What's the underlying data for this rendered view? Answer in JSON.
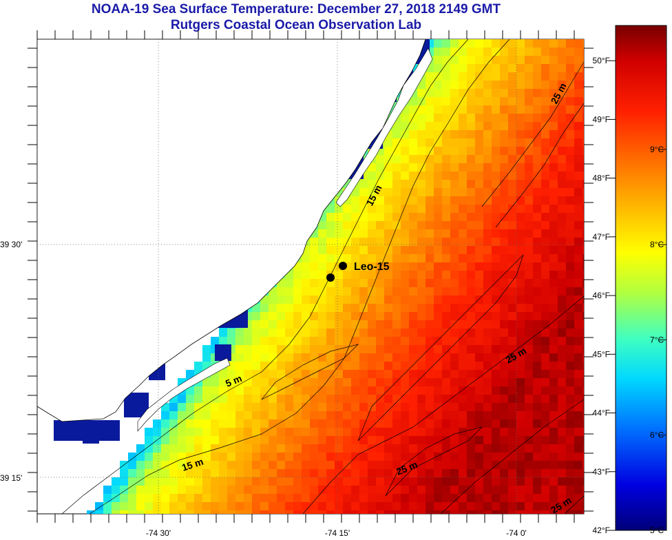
{
  "title": "NOAA-19 Sea Surface Temperature:  December 27, 2018 2149 GMT",
  "subtitle": "Rutgers Coastal Ocean Observation Lab",
  "station": {
    "name": "Leo-15"
  },
  "lat_labels": [
    "39 30'",
    "39 15'"
  ],
  "lon_labels": [
    "-74 30'",
    "-74 15'",
    "-74 0'"
  ],
  "contour_labels": [
    "15 m",
    "5 m",
    "15 m",
    "25 m",
    "25 m",
    "25 m",
    "25 m"
  ],
  "colorbar": {
    "fahrenheit": [
      "50°F",
      "49°F",
      "48°F",
      "47°F",
      "46°F",
      "45°F",
      "44°F",
      "43°F",
      "42°F"
    ],
    "celsius": [
      "9°C",
      "8°C",
      "7°C",
      "6°C",
      "5°C"
    ],
    "range_f": [
      42,
      50.6
    ],
    "range_c": [
      5,
      10.3
    ]
  },
  "colors": {
    "title": "#1a1aa8",
    "cloud": "#0a1a9c",
    "land": "#ffffff"
  },
  "chart_data": {
    "type": "heatmap",
    "variable": "sea surface temperature",
    "units": [
      "°F",
      "°C"
    ],
    "value_range_f": [
      42,
      50.6
    ],
    "latitude_ticks": [
      "39 30'",
      "39 15'"
    ],
    "longitude_ticks": [
      "-74 30'",
      "-74 15'",
      "-74 0'"
    ],
    "isobath_labels_m": [
      5,
      15,
      25
    ]
  }
}
